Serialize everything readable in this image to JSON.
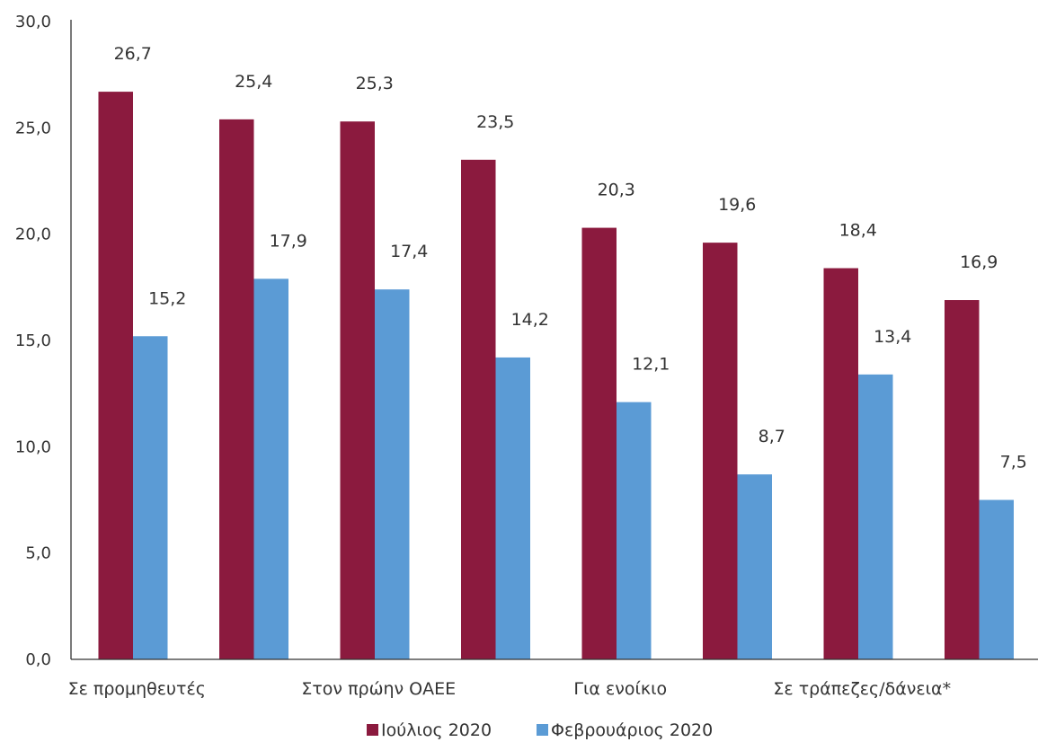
{
  "chart_data": {
    "type": "bar",
    "categories": [
      "Σε προμηθευτές",
      "",
      "Στον πρώην ΟΑΕΕ",
      "",
      "Για ενοίκιο",
      "",
      "Σε τράπεζες/δάνεια*",
      ""
    ],
    "series": [
      {
        "name": "Ιούλιος 2020",
        "color": "#8b1a3e",
        "values": [
          26.7,
          25.4,
          25.3,
          23.5,
          20.3,
          19.6,
          18.4,
          16.9
        ],
        "labels": [
          "26,7",
          "25,4",
          "25,3",
          "23,5",
          "20,3",
          "19,6",
          "18,4",
          "16,9"
        ]
      },
      {
        "name": "Φεβρουάριος 2020",
        "color": "#5b9bd5",
        "values": [
          15.2,
          17.9,
          17.4,
          14.2,
          12.1,
          8.7,
          13.4,
          7.5
        ],
        "labels": [
          "15,2",
          "17,9",
          "17,4",
          "14,2",
          "12,1",
          "8,7",
          "13,4",
          "7,5"
        ]
      }
    ],
    "ylim": [
      0,
      30
    ],
    "yticks": [
      "0,0",
      "5,0",
      "10,0",
      "15,0",
      "20,0",
      "25,0",
      "30,0"
    ],
    "grid": false,
    "legend_position": "bottom"
  }
}
